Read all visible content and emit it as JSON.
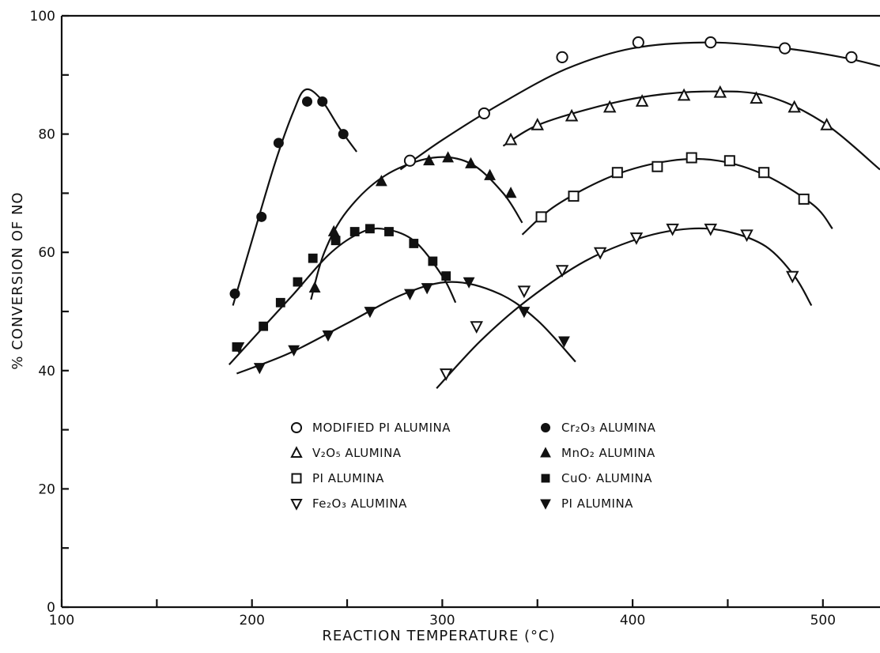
{
  "chart_data": {
    "type": "scatter",
    "title": "",
    "xlabel": "REACTION TEMPERATURE (°C)",
    "ylabel": "% CONVERSION OF NO",
    "xlim": [
      100,
      530
    ],
    "ylim": [
      0,
      100
    ],
    "grid": false,
    "legend_position": "center",
    "x_ticks_labeled": [
      100,
      200,
      300,
      400,
      500
    ],
    "y_ticks_labeled": [
      0,
      20,
      40,
      60,
      80,
      100
    ],
    "x_tick_labels": [
      "100",
      "200",
      "300",
      "400",
      "500"
    ],
    "y_tick_labels": [
      "0",
      "20",
      "40",
      "60",
      "80",
      "100"
    ],
    "series": [
      {
        "name": "MODIFIED PI ALUMINA",
        "marker": "open-circle",
        "x": [
          283,
          322,
          363,
          403,
          441,
          480,
          515
        ],
        "y": [
          75.5,
          83.5,
          93,
          95.5,
          95.5,
          94.5,
          93
        ],
        "curve": [
          [
            278,
            74
          ],
          [
            300,
            79
          ],
          [
            330,
            85
          ],
          [
            365,
            91
          ],
          [
            400,
            94.5
          ],
          [
            440,
            95.5
          ],
          [
            480,
            94.5
          ],
          [
            510,
            93
          ],
          [
            530,
            91.5
          ]
        ]
      },
      {
        "name": "Cr₂O₃ ALUMINA",
        "marker": "filled-circle",
        "x": [
          191,
          205,
          214,
          229,
          237,
          248
        ],
        "y": [
          53,
          66,
          78.5,
          85.5,
          85.5,
          80
        ],
        "curve": [
          [
            190,
            51
          ],
          [
            200,
            62
          ],
          [
            212,
            75
          ],
          [
            222,
            84
          ],
          [
            228,
            87.5
          ],
          [
            236,
            86
          ],
          [
            246,
            81
          ],
          [
            255,
            77
          ]
        ]
      },
      {
        "name": "V₂O₅ ALUMINA",
        "marker": "open-triangle",
        "x": [
          336,
          350,
          368,
          388,
          405,
          427,
          446,
          465,
          485,
          502
        ],
        "y": [
          79,
          81.5,
          83,
          84.5,
          85.5,
          86.5,
          87,
          86,
          84.5,
          81.5
        ],
        "curve": [
          [
            332,
            78
          ],
          [
            350,
            81.5
          ],
          [
            380,
            84.5
          ],
          [
            410,
            86.5
          ],
          [
            440,
            87.2
          ],
          [
            470,
            86.5
          ],
          [
            500,
            82
          ],
          [
            530,
            74
          ]
        ]
      },
      {
        "name": "MnO₂ ALUMINA",
        "marker": "filled-triangle",
        "x": [
          233,
          243,
          268,
          293,
          303,
          315,
          325,
          336
        ],
        "y": [
          54,
          63.5,
          72,
          75.5,
          76,
          75,
          73,
          70
        ],
        "curve": [
          [
            231,
            52
          ],
          [
            238,
            60
          ],
          [
            250,
            67
          ],
          [
            270,
            73
          ],
          [
            295,
            76
          ],
          [
            315,
            75
          ],
          [
            332,
            70
          ],
          [
            342,
            65
          ]
        ]
      },
      {
        "name": "PI ALUMINA",
        "marker": "open-square",
        "x": [
          352,
          369,
          392,
          413,
          431,
          451,
          469,
          490
        ],
        "y": [
          66,
          69.5,
          73.5,
          74.5,
          76,
          75.5,
          73.5,
          69
        ],
        "curve": [
          [
            342,
            63
          ],
          [
            360,
            68
          ],
          [
            390,
            73
          ],
          [
            420,
            75.5
          ],
          [
            445,
            75.5
          ],
          [
            470,
            73
          ],
          [
            495,
            68
          ],
          [
            505,
            64
          ]
        ]
      },
      {
        "name": "CuO ALUMINA",
        "marker": "filled-square",
        "x": [
          192,
          206,
          215,
          224,
          232,
          244,
          254,
          262,
          272,
          285,
          295,
          302
        ],
        "y": [
          44,
          47.5,
          51.5,
          55,
          59,
          62,
          63.5,
          64,
          63.5,
          61.5,
          58.5,
          56
        ],
        "curve": [
          [
            188,
            41
          ],
          [
            205,
            47
          ],
          [
            222,
            53
          ],
          [
            240,
            59.5
          ],
          [
            255,
            63
          ],
          [
            268,
            64
          ],
          [
            285,
            62
          ],
          [
            300,
            56
          ],
          [
            307,
            51.5
          ]
        ]
      },
      {
        "name": "Fe₂O₃ ALUMINA",
        "marker": "open-inv-triangle",
        "x": [
          302,
          318,
          343,
          363,
          383,
          402,
          421,
          441,
          460,
          484
        ],
        "y": [
          39.5,
          47.5,
          53.5,
          57,
          60,
          62.5,
          64,
          64,
          63,
          56
        ],
        "curve": [
          [
            297,
            37
          ],
          [
            320,
            45
          ],
          [
            345,
            52
          ],
          [
            375,
            58.5
          ],
          [
            405,
            62.5
          ],
          [
            430,
            64
          ],
          [
            450,
            63.5
          ],
          [
            470,
            61
          ],
          [
            485,
            56
          ],
          [
            494,
            51
          ]
        ]
      },
      {
        "name": "PI ALUMINA",
        "marker": "filled-inv-triangle",
        "x": [
          193,
          204,
          222,
          240,
          262,
          283,
          292,
          314,
          343,
          364
        ],
        "y": [
          44,
          40.5,
          43.5,
          46,
          50,
          53,
          54,
          55,
          50,
          45
        ],
        "curve": [
          [
            192,
            39.5
          ],
          [
            220,
            43
          ],
          [
            250,
            48
          ],
          [
            280,
            53
          ],
          [
            305,
            55
          ],
          [
            330,
            53
          ],
          [
            350,
            48.5
          ],
          [
            370,
            41.5
          ]
        ]
      }
    ]
  },
  "legend": {
    "items": [
      {
        "label": "MODIFIED PI ALUMINA",
        "marker": "open-circle"
      },
      {
        "label": "Cr₂O₃ ALUMINA",
        "marker": "filled-circle"
      },
      {
        "label": "V₂O₅ ALUMINA",
        "marker": "open-triangle"
      },
      {
        "label": "MnO₂ ALUMINA",
        "marker": "filled-triangle"
      },
      {
        "label": "PI ALUMINA",
        "marker": "open-square"
      },
      {
        "label": "CuO· ALUMINA",
        "marker": "filled-square"
      },
      {
        "label": "Fe₂O₃ ALUMINA",
        "marker": "open-inv-triangle"
      },
      {
        "label": "PI ALUMINA",
        "marker": "filled-inv-triangle"
      }
    ]
  }
}
